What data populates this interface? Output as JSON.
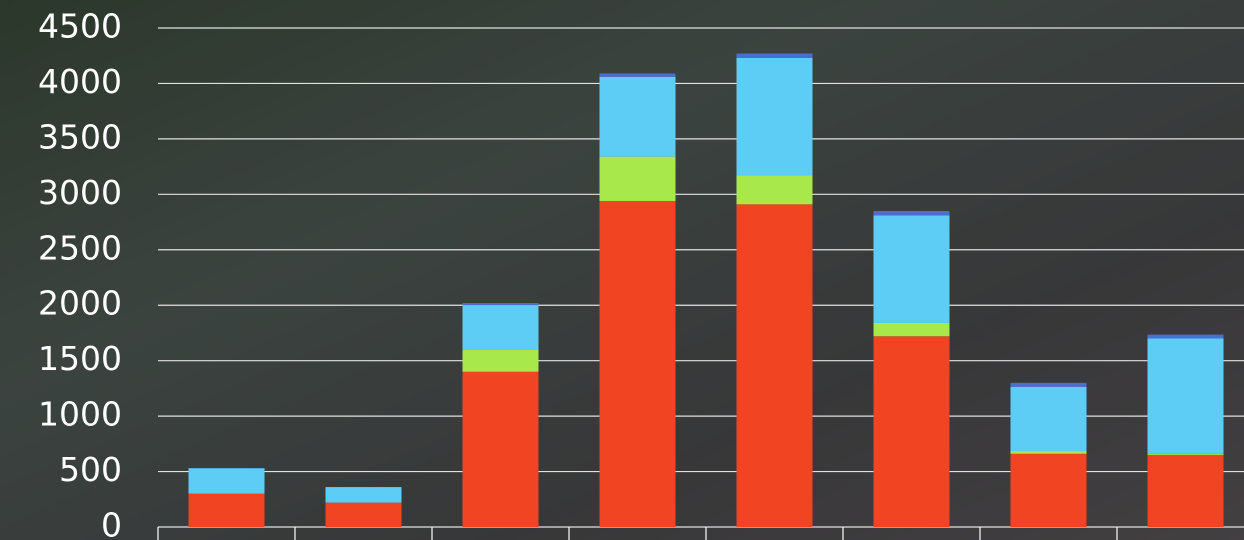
{
  "chart_data": {
    "type": "stacked-bar",
    "categories": [
      null,
      null,
      null,
      null,
      null,
      null,
      null,
      null
    ],
    "series": [
      {
        "color": "#f04423",
        "values": [
          300,
          220,
          1400,
          2940,
          2910,
          1720,
          660,
          650
        ]
      },
      {
        "color": "#a8e84a",
        "values": [
          0,
          0,
          200,
          400,
          260,
          120,
          25,
          10
        ]
      },
      {
        "color": "#5ecdf5",
        "values": [
          230,
          140,
          400,
          720,
          1060,
          970,
          580,
          1040
        ]
      },
      {
        "color": "#4a6fd0",
        "values": [
          0,
          0,
          20,
          30,
          40,
          40,
          35,
          35
        ]
      }
    ],
    "ylim": [
      0,
      4500
    ],
    "yticks": [
      0,
      500,
      1000,
      1500,
      2000,
      2500,
      3000,
      3500,
      4000,
      4500
    ],
    "grid": true
  }
}
